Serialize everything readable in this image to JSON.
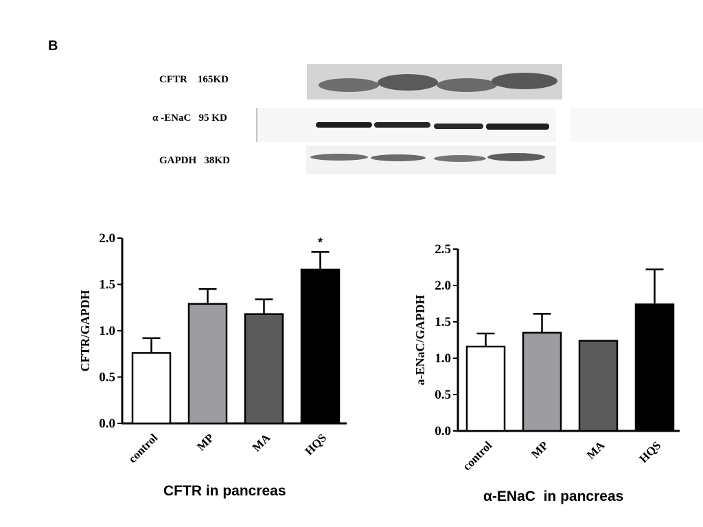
{
  "figure": {
    "panel_label": "B",
    "blots": [
      {
        "label": "CFTR    165KD"
      },
      {
        "label": "α -ENaC   95 KD"
      },
      {
        "label": "GAPDH   38KD"
      }
    ]
  },
  "colors": {
    "control": "#ffffff",
    "MP": "#9d9ca1",
    "MA": "#5b5b5b",
    "HQS": "#000000"
  },
  "chart_data": [
    {
      "type": "bar",
      "categories": [
        "control",
        "MP",
        "MA",
        "HQS"
      ],
      "values": [
        0.76,
        1.29,
        1.18,
        1.66
      ],
      "errors": [
        0.16,
        0.16,
        0.16,
        0.19
      ],
      "significance": [
        "",
        "",
        "",
        "*"
      ],
      "title": "CFTR in pancreas",
      "xlabel": "",
      "ylabel": "CFTR/GAPDH",
      "ylim": [
        0,
        2.0
      ],
      "yticks": [
        "0.0",
        "0.5",
        "1.0",
        "1.5",
        "2.0"
      ],
      "grid": false
    },
    {
      "type": "bar",
      "categories": [
        "control",
        "MP",
        "MA",
        "HQS"
      ],
      "values": [
        1.16,
        1.35,
        1.24,
        1.74
      ],
      "errors": [
        0.18,
        0.26,
        0.0,
        0.48
      ],
      "significance": [
        "",
        "",
        "",
        ""
      ],
      "title": "α-ENaC  in pancreas",
      "xlabel": "",
      "ylabel": "a-ENaC/GAPDH",
      "ylim": [
        0,
        2.5
      ],
      "yticks": [
        "0.0",
        "0.5",
        "1.0",
        "1.5",
        "2.0",
        "2.5"
      ],
      "grid": false
    }
  ]
}
